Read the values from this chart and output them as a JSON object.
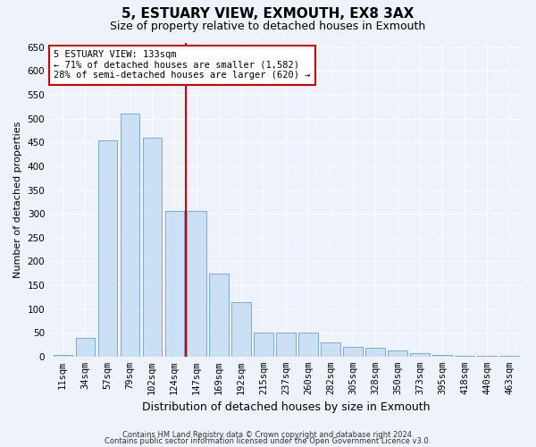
{
  "title1": "5, ESTUARY VIEW, EXMOUTH, EX8 3AX",
  "title2": "Size of property relative to detached houses in Exmouth",
  "xlabel": "Distribution of detached houses by size in Exmouth",
  "ylabel": "Number of detached properties",
  "categories": [
    "11sqm",
    "34sqm",
    "57sqm",
    "79sqm",
    "102sqm",
    "124sqm",
    "147sqm",
    "169sqm",
    "192sqm",
    "215sqm",
    "237sqm",
    "260sqm",
    "282sqm",
    "305sqm",
    "328sqm",
    "350sqm",
    "373sqm",
    "395sqm",
    "418sqm",
    "440sqm",
    "463sqm"
  ],
  "values": [
    3,
    40,
    455,
    510,
    460,
    305,
    305,
    175,
    115,
    50,
    50,
    50,
    30,
    20,
    18,
    13,
    7,
    4,
    2,
    1,
    2
  ],
  "bar_color": "#cce0f5",
  "bar_edge_color": "#6aa0cc",
  "vline_color": "#cc0000",
  "annotation_text": "5 ESTUARY VIEW: 133sqm\n← 71% of detached houses are smaller (1,582)\n28% of semi-detached houses are larger (620) →",
  "annotation_box_facecolor": "#ffffff",
  "annotation_box_edgecolor": "#cc0000",
  "ylim": [
    0,
    660
  ],
  "yticks": [
    0,
    50,
    100,
    150,
    200,
    250,
    300,
    350,
    400,
    450,
    500,
    550,
    600,
    650
  ],
  "footer1": "Contains HM Land Registry data © Crown copyright and database right 2024.",
  "footer2": "Contains public sector information licensed under the Open Government Licence v3.0.",
  "bg_color": "#eef2fb",
  "title1_fontsize": 11,
  "title2_fontsize": 9,
  "xlabel_fontsize": 9,
  "ylabel_fontsize": 8,
  "tick_fontsize": 7.5,
  "footer_fontsize": 6,
  "annot_fontsize": 7.5
}
